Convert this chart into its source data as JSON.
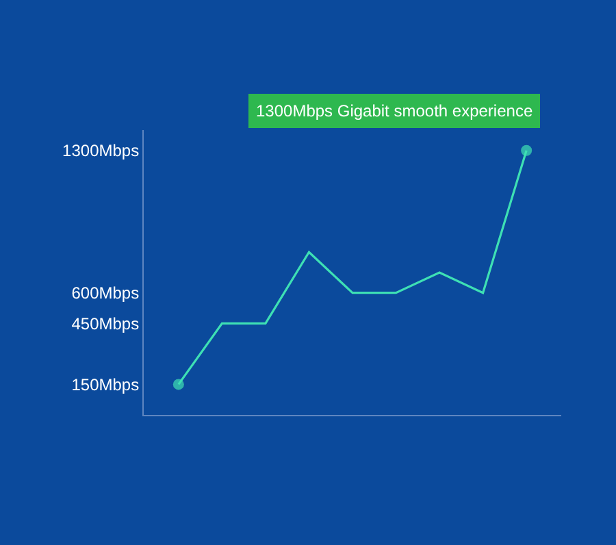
{
  "chart_data": {
    "type": "line",
    "categories": [
      null,
      null,
      null,
      null,
      null,
      null,
      null,
      null,
      null
    ],
    "series": [
      {
        "color": "#3ee0b4",
        "values": [
          150,
          450,
          450,
          800,
          600,
          600,
          700,
          600,
          1300
        ]
      }
    ],
    "ylim": [
      0,
      1400
    ],
    "yticks": [
      {
        "value": 150,
        "label": "150Mbps"
      },
      {
        "value": 450,
        "label": "450Mbps"
      },
      {
        "value": 600,
        "label": "600Mbps"
      },
      {
        "value": 1300,
        "label": "1300Mbps"
      }
    ],
    "tick_labels": "y",
    "annotations": [
      "1300Mbps Gigabit smooth experience"
    ],
    "line_style": "solid"
  }
}
